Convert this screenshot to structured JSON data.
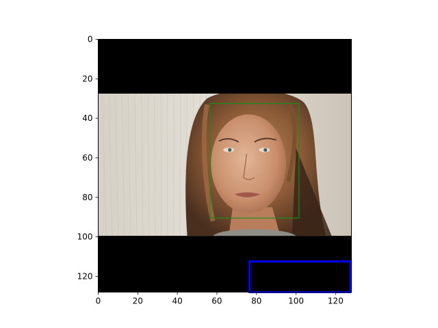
{
  "figure": {
    "x_ticks": [
      "0",
      "20",
      "40",
      "60",
      "80",
      "100",
      "120"
    ],
    "y_ticks": [
      "0",
      "20",
      "40",
      "60",
      "80",
      "100",
      "120"
    ],
    "extent": {
      "x": [
        0,
        128
      ],
      "y": [
        128,
        0
      ]
    },
    "image": {
      "content": "portrait photo of a woman with long wavy light-brown hair on a pale textured background, letterboxed by black bands",
      "photo_rows": [
        27.5,
        99.5
      ],
      "letterbox_color": "#000000"
    },
    "boxes": [
      {
        "name": "face-detection-box",
        "color": "#1a8c1a",
        "x0": 56.5,
        "y0": 32.5,
        "x1": 101.5,
        "y1": 90.5
      },
      {
        "name": "blue-box",
        "color": "#0000ff",
        "x0": 76.5,
        "y0": 112.5,
        "x1": 127.5,
        "y1": 128.0
      }
    ]
  }
}
